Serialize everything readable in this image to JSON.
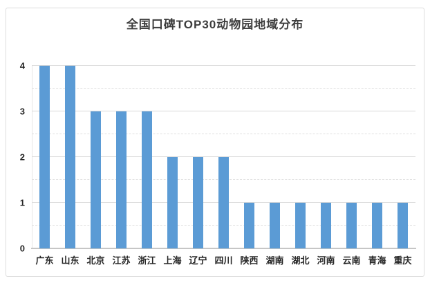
{
  "chart_data": {
    "type": "bar",
    "title": "全国口碑TOP30动物园地域分布",
    "categories": [
      "广东",
      "山东",
      "北京",
      "江苏",
      "浙江",
      "上海",
      "辽宁",
      "四川",
      "陕西",
      "湖南",
      "湖北",
      "河南",
      "云南",
      "青海",
      "重庆"
    ],
    "values": [
      4,
      4,
      3,
      3,
      3,
      2,
      2,
      2,
      1,
      1,
      1,
      1,
      1,
      1,
      1
    ],
    "xlabel": "",
    "ylabel": "",
    "ylim": [
      0,
      4
    ],
    "yticks": [
      0,
      1,
      2,
      3,
      4
    ],
    "minor_tick_interval": 0.5,
    "grid": true,
    "legend_position": "none",
    "colors": {
      "bar": "#5b9bd5",
      "grid_major": "#d9d9d9",
      "grid_minor": "#e0e0e0",
      "axis_line": "#c6c6c6",
      "title_text": "#3d3d3d",
      "tick_text": "#262626",
      "frame_border": "#dcdcdc",
      "background": "#ffffff"
    }
  }
}
